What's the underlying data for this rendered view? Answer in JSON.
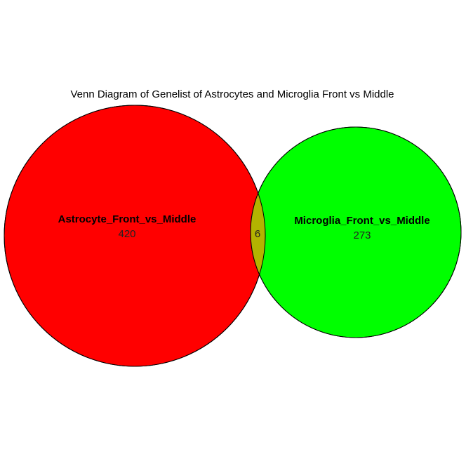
{
  "title": "Venn Diagram of Genelist of Astrocytes and Microglia Front vs Middle",
  "sets": [
    {
      "name": "Astrocyte_Front_vs_Middle",
      "count": "420",
      "color": "#ff0000"
    },
    {
      "name": "Microglia_Front_vs_Middle",
      "count": "273",
      "color": "#00ff00"
    }
  ],
  "overlap": {
    "count": "6",
    "color": "#b3b300"
  }
}
